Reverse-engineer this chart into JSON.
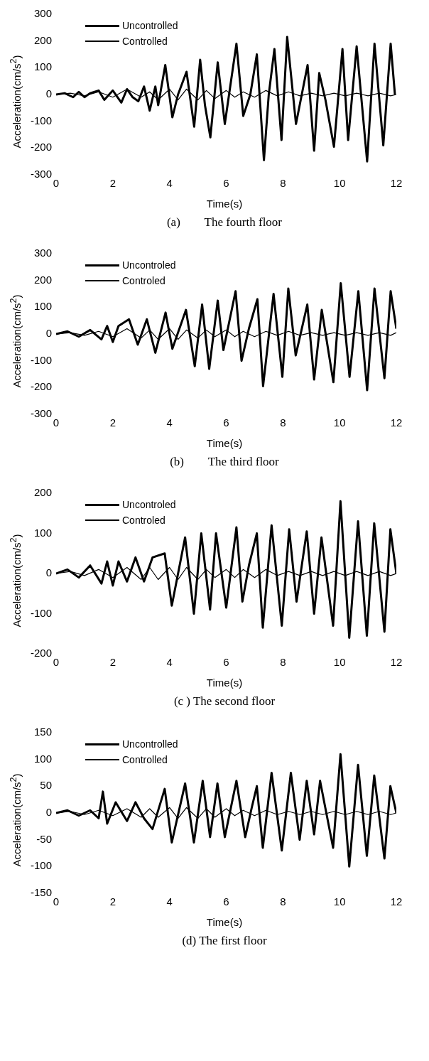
{
  "chart_data": [
    {
      "type": "line",
      "title": "(a)        The fourth floor",
      "xlabel": "Time(s)",
      "ylabel": "Acceleration(cm/s$^{2}$)",
      "xlim": [
        0,
        12
      ],
      "xticks": [
        0,
        2,
        4,
        6,
        8,
        10,
        12
      ],
      "ylim": [
        -300,
        300
      ],
      "yticks": [
        -300,
        -200,
        -100,
        0,
        100,
        200,
        300
      ],
      "grid": false,
      "legend": "top left",
      "marker": "none",
      "series": [
        {
          "name": "Uncontrolled",
          "color": "#000000",
          "x": [
            0,
            0.3,
            0.6,
            0.8,
            1.0,
            1.2,
            1.5,
            1.7,
            2.0,
            2.3,
            2.5,
            2.7,
            2.9,
            3.1,
            3.3,
            3.5,
            3.6,
            3.85,
            4.1,
            4.3,
            4.6,
            4.87,
            5.08,
            5.25,
            5.44,
            5.7,
            5.95,
            6.1,
            6.36,
            6.6,
            6.85,
            7.08,
            7.33,
            7.5,
            7.7,
            7.95,
            8.15,
            8.46,
            8.87,
            9.1,
            9.28,
            9.5,
            9.8,
            10.1,
            10.3,
            10.6,
            10.97,
            11.23,
            11.54,
            11.8,
            11.95
          ],
          "values": [
            0,
            5,
            -10,
            10,
            -10,
            5,
            15,
            -20,
            15,
            -30,
            20,
            -10,
            -25,
            30,
            -60,
            30,
            -40,
            110,
            -85,
            0,
            85,
            -120,
            130,
            -40,
            -160,
            120,
            -110,
            0,
            190,
            -80,
            0,
            150,
            -245,
            0,
            170,
            -170,
            215,
            -110,
            110,
            -210,
            80,
            -20,
            -195,
            170,
            -170,
            180,
            -250,
            190,
            -190,
            190,
            0
          ]
        },
        {
          "name": "Controlled",
          "color": "#000000",
          "x": [
            0,
            0.5,
            1,
            1.5,
            2,
            2.5,
            3,
            3.3,
            3.6,
            4,
            4.3,
            4.6,
            5,
            5.3,
            5.6,
            6,
            6.3,
            6.6,
            7,
            7.4,
            7.8,
            8.2,
            8.6,
            9,
            9.4,
            9.8,
            10.2,
            10.6,
            11,
            11.4,
            11.8,
            12
          ],
          "values": [
            0,
            5,
            -5,
            10,
            -10,
            20,
            -10,
            10,
            -20,
            20,
            -20,
            20,
            -20,
            15,
            -15,
            15,
            -10,
            10,
            -10,
            15,
            -5,
            10,
            -5,
            5,
            -5,
            5,
            -5,
            5,
            -5,
            5,
            -5,
            0
          ]
        }
      ]
    },
    {
      "type": "line",
      "title": "(b)        The third floor",
      "xlabel": "Time(s)",
      "ylabel": "Acceleration(cm/s$^{2}$)",
      "xlim": [
        0,
        12
      ],
      "xticks": [
        0,
        2,
        4,
        6,
        8,
        10,
        12
      ],
      "ylim": [
        -300,
        300
      ],
      "yticks": [
        -300,
        -200,
        -100,
        0,
        100,
        200,
        300
      ],
      "grid": false,
      "legend": "top left",
      "marker": "none",
      "series": [
        {
          "name": "Uncontroled",
          "color": "#000000",
          "x": [
            0,
            0.4,
            0.8,
            1.2,
            1.6,
            1.8,
            2.0,
            2.2,
            2.57,
            2.88,
            3.2,
            3.5,
            3.86,
            4.1,
            4.58,
            4.89,
            5.15,
            5.4,
            5.7,
            5.9,
            6.33,
            6.54,
            6.8,
            7.1,
            7.3,
            7.67,
            7.98,
            8.19,
            8.45,
            8.86,
            9.1,
            9.37,
            9.78,
            10.04,
            10.35,
            10.66,
            10.97,
            11.23,
            11.58,
            11.8,
            12
          ],
          "values": [
            0,
            10,
            -10,
            15,
            -20,
            30,
            -30,
            30,
            55,
            -40,
            55,
            -70,
            80,
            -55,
            90,
            -120,
            110,
            -130,
            125,
            -60,
            160,
            -100,
            20,
            130,
            -195,
            150,
            -160,
            170,
            -80,
            110,
            -170,
            90,
            -180,
            190,
            -160,
            160,
            -210,
            170,
            -165,
            160,
            20
          ]
        },
        {
          "name": "Controled",
          "color": "#000000",
          "x": [
            0,
            0.5,
            1,
            1.5,
            2,
            2.5,
            3,
            3.3,
            3.6,
            4,
            4.3,
            4.6,
            5,
            5.3,
            5.6,
            6,
            6.3,
            6.6,
            7,
            7.4,
            7.8,
            8.2,
            8.6,
            9,
            9.4,
            9.8,
            10.2,
            10.6,
            11,
            11.4,
            11.8,
            12
          ],
          "values": [
            0,
            5,
            -5,
            10,
            -10,
            20,
            -15,
            15,
            -20,
            20,
            -20,
            15,
            -15,
            15,
            -10,
            15,
            -10,
            10,
            -10,
            10,
            -5,
            10,
            -5,
            5,
            -5,
            5,
            -5,
            5,
            -5,
            5,
            -5,
            5
          ]
        }
      ]
    },
    {
      "type": "line",
      "title": "(c ) The second floor",
      "xlabel": "Time(s)",
      "ylabel": "Acceleration(cm/s$^{2}$)",
      "xlim": [
        0,
        12
      ],
      "xticks": [
        0,
        2,
        4,
        6,
        8,
        10,
        12
      ],
      "ylim": [
        -200,
        200
      ],
      "yticks": [
        -200,
        -100,
        0,
        100,
        200
      ],
      "grid": false,
      "legend": "top left",
      "marker": "none",
      "series": [
        {
          "name": "Uncontroled",
          "color": "#000000",
          "x": [
            0,
            0.4,
            0.8,
            1.2,
            1.6,
            1.8,
            2.0,
            2.2,
            2.5,
            2.8,
            3.1,
            3.4,
            3.83,
            4.08,
            4.55,
            4.86,
            5.12,
            5.43,
            5.64,
            6.0,
            6.36,
            6.57,
            6.8,
            7.08,
            7.29,
            7.6,
            7.96,
            8.22,
            8.48,
            8.84,
            9.1,
            9.36,
            9.77,
            10.03,
            10.34,
            10.65,
            10.96,
            11.22,
            11.58,
            11.79,
            12
          ],
          "values": [
            0,
            10,
            -10,
            20,
            -25,
            30,
            -30,
            30,
            -20,
            40,
            -20,
            40,
            50,
            -80,
            90,
            -100,
            100,
            -90,
            100,
            -85,
            115,
            -70,
            20,
            100,
            -135,
            120,
            -130,
            110,
            -70,
            105,
            -100,
            90,
            -130,
            180,
            -160,
            130,
            -155,
            125,
            -145,
            110,
            0
          ]
        },
        {
          "name": "Controled",
          "color": "#000000",
          "x": [
            0,
            0.5,
            1,
            1.5,
            2,
            2.5,
            3,
            3.3,
            3.6,
            4,
            4.3,
            4.6,
            5,
            5.3,
            5.6,
            6,
            6.3,
            6.6,
            7,
            7.4,
            7.8,
            8.2,
            8.6,
            9,
            9.4,
            9.8,
            10.2,
            10.6,
            11,
            11.4,
            11.8,
            12
          ],
          "values": [
            0,
            5,
            -5,
            10,
            -10,
            15,
            -15,
            15,
            -15,
            15,
            -15,
            15,
            -15,
            10,
            -10,
            10,
            -10,
            10,
            -10,
            10,
            -5,
            5,
            -5,
            5,
            -5,
            5,
            -5,
            5,
            -5,
            5,
            -5,
            0
          ]
        }
      ]
    },
    {
      "type": "line",
      "title": "(d) The first floor",
      "xlabel": "Time(s)",
      "ylabel": "Acceleration(cm/s$^{2}$)",
      "xlim": [
        0,
        12
      ],
      "xticks": [
        0,
        2,
        4,
        6,
        8,
        10,
        12
      ],
      "ylim": [
        -150,
        150
      ],
      "yticks": [
        -150,
        -100,
        -50,
        0,
        50,
        100,
        150
      ],
      "grid": false,
      "legend": "top left",
      "marker": "none",
      "series": [
        {
          "name": "Uncontrolled",
          "color": "#000000",
          "x": [
            0,
            0.4,
            0.8,
            1.2,
            1.5,
            1.65,
            1.8,
            2.1,
            2.5,
            2.8,
            3.1,
            3.4,
            3.83,
            4.08,
            4.55,
            4.86,
            5.17,
            5.43,
            5.69,
            5.95,
            6.36,
            6.67,
            6.9,
            7.08,
            7.29,
            7.6,
            7.96,
            8.28,
            8.59,
            8.84,
            9.1,
            9.31,
            9.77,
            10.03,
            10.34,
            10.65,
            10.96,
            11.22,
            11.58,
            11.79,
            12
          ],
          "values": [
            0,
            5,
            -5,
            5,
            -10,
            40,
            -20,
            20,
            -15,
            20,
            -10,
            -30,
            45,
            -55,
            55,
            -55,
            60,
            -45,
            55,
            -45,
            60,
            -45,
            10,
            50,
            -65,
            75,
            -70,
            75,
            -50,
            60,
            -40,
            60,
            -65,
            110,
            -100,
            90,
            -80,
            70,
            -85,
            50,
            0
          ]
        },
        {
          "name": "Controlled",
          "color": "#000000",
          "x": [
            0,
            0.5,
            1,
            1.5,
            2,
            2.5,
            3,
            3.3,
            3.6,
            4,
            4.3,
            4.6,
            5,
            5.3,
            5.6,
            6,
            6.3,
            6.6,
            7,
            7.4,
            7.8,
            8.2,
            8.6,
            9,
            9.4,
            9.8,
            10.2,
            10.6,
            11,
            11.4,
            11.8,
            12
          ],
          "values": [
            0,
            3,
            -3,
            5,
            -5,
            8,
            -8,
            8,
            -8,
            10,
            -10,
            10,
            -10,
            8,
            -8,
            8,
            -5,
            5,
            -5,
            5,
            -3,
            3,
            -3,
            3,
            -3,
            3,
            -3,
            3,
            -3,
            3,
            -3,
            0
          ]
        }
      ]
    }
  ]
}
